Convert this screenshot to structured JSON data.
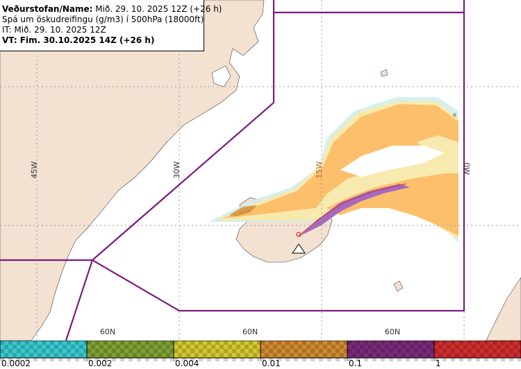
{
  "header": {
    "line1_label": "Veðurstofan/Name:",
    "line1_value": "Mið. 29. 10. 2025 12Z (+26 h)",
    "line2": "Spá um öskudreifingu (g/m3) í 500hPa (18000ft)",
    "line3": "IT: Mið. 29. 10. 2025 12Z",
    "line4": "VT: Fim. 30.10.2025 14Z (+26 h)"
  },
  "map": {
    "longitude_labels": [
      "45W",
      "30W",
      "15W",
      "0W"
    ],
    "latitude_labels": [
      "60N",
      "60N",
      "60N"
    ],
    "small_label": "o",
    "colors": {
      "land": "#f3e1d1",
      "sea": "#ffffff",
      "boundary": "#7b1a7b",
      "grid": "#9a9a9a"
    }
  },
  "legend": {
    "values": [
      "0.0002",
      "0.002",
      "0.004",
      "0.01",
      "0.1",
      "1"
    ],
    "colors": [
      "#38c8cf",
      "#7ea032",
      "#d4c830",
      "#d08a30",
      "#7a2a7a",
      "#cf2d2d"
    ]
  }
}
